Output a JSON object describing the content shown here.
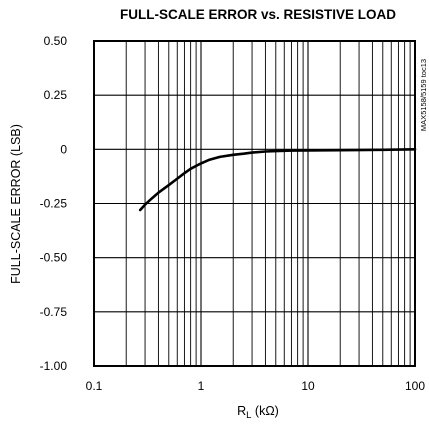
{
  "chart_data": {
    "type": "line",
    "title": "FULL-SCALE ERROR vs. RESISTIVE LOAD",
    "xlabel": {
      "main": "R",
      "sub": "L",
      "unit": " (kΩ)"
    },
    "ylabel": "FULL-SCALE  ERROR (LSB)",
    "side_note": "MAX5158/5159 toc13",
    "x_scale": "log",
    "xlim": [
      0.1,
      100
    ],
    "ylim": [
      -1.0,
      0.5
    ],
    "grid": true,
    "x_ticks": [
      {
        "value": 0.1,
        "label": "0.1"
      },
      {
        "value": 1,
        "label": "1"
      },
      {
        "value": 10,
        "label": "10"
      },
      {
        "value": 100,
        "label": "100"
      }
    ],
    "x_minor_ticks": [
      0.2,
      0.3,
      0.4,
      0.5,
      0.6,
      0.7,
      0.8,
      0.9,
      2,
      3,
      4,
      5,
      6,
      7,
      8,
      9,
      20,
      30,
      40,
      50,
      60,
      70,
      80,
      90
    ],
    "y_ticks": [
      {
        "value": 0.5,
        "label": "0.50"
      },
      {
        "value": 0.25,
        "label": "0.25"
      },
      {
        "value": 0,
        "label": "0"
      },
      {
        "value": -0.25,
        "label": "-0.25"
      },
      {
        "value": -0.5,
        "label": "-0.50"
      },
      {
        "value": -0.75,
        "label": "-0.75"
      },
      {
        "value": -1.0,
        "label": "-1.00"
      }
    ],
    "series": [
      {
        "color": "#000000",
        "x": [
          0.27,
          0.3,
          0.35,
          0.4,
          0.5,
          0.6,
          0.7,
          0.8,
          1,
          1.2,
          1.5,
          2,
          2.5,
          3,
          4,
          5,
          7,
          10,
          20,
          50,
          100
        ],
        "y": [
          -0.28,
          -0.255,
          -0.225,
          -0.2,
          -0.165,
          -0.135,
          -0.11,
          -0.09,
          -0.065,
          -0.048,
          -0.035,
          -0.025,
          -0.02,
          -0.015,
          -0.01,
          -0.008,
          -0.006,
          -0.005,
          -0.004,
          -0.002,
          0.0
        ]
      }
    ]
  }
}
